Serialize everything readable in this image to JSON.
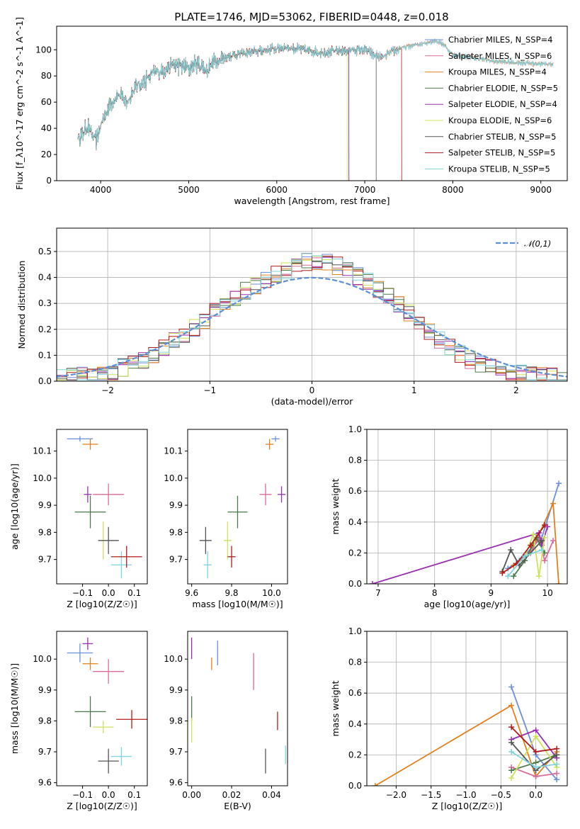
{
  "title": "PLATE=1746, MJD=53062, FIBERID=0448, z=0.018",
  "colors": {
    "Chabrier MILES": "#6a8fdc",
    "Salpeter MILES": "#d96b9d",
    "Kroupa MILES": "#e0801e",
    "Chabrier ELODIE": "#4a7a4a",
    "Salpeter ELODIE": "#9a2fb0",
    "Kroupa ELODIE": "#cfe05a",
    "Chabrier STELIB": "#555555",
    "Salpeter STELIB": "#b01c1c",
    "Kroupa STELIB": "#7fd4dd",
    "normal": "#5b8fd8"
  },
  "chart_data": [
    {
      "type": "line",
      "id": "spectrum",
      "xlabel": "wavelength [Angstrom, rest frame]",
      "ylabel": "Flux [f_λ10^-17 erg cm^-2 s^-1 A^-1]",
      "xlim": [
        3500,
        9300
      ],
      "ylim": [
        0,
        118
      ],
      "xticks": [
        4000,
        5000,
        6000,
        7000,
        8000,
        9000
      ],
      "yticks": [
        0,
        20,
        40,
        60,
        80,
        100
      ],
      "continuum": [
        [
          3740,
          32
        ],
        [
          3800,
          36
        ],
        [
          3850,
          42
        ],
        [
          3900,
          35
        ],
        [
          3950,
          30
        ],
        [
          4000,
          42
        ],
        [
          4100,
          58
        ],
        [
          4200,
          66
        ],
        [
          4300,
          60
        ],
        [
          4400,
          72
        ],
        [
          4500,
          76
        ],
        [
          4600,
          82
        ],
        [
          4700,
          84
        ],
        [
          4800,
          88
        ],
        [
          4900,
          88
        ],
        [
          5000,
          86
        ],
        [
          5100,
          90
        ],
        [
          5200,
          84
        ],
        [
          5300,
          92
        ],
        [
          5500,
          96
        ],
        [
          5700,
          98
        ],
        [
          5900,
          100
        ],
        [
          6100,
          102
        ],
        [
          6300,
          100
        ],
        [
          6500,
          98
        ],
        [
          6700,
          99
        ],
        [
          6900,
          100
        ],
        [
          7000,
          100
        ],
        [
          7100,
          96
        ],
        [
          7200,
          94
        ],
        [
          7300,
          98
        ],
        [
          7400,
          101
        ],
        [
          7600,
          104
        ],
        [
          7800,
          107
        ],
        [
          7900,
          104
        ],
        [
          8000,
          96
        ],
        [
          8200,
          94
        ],
        [
          8500,
          91
        ],
        [
          8800,
          90
        ],
        [
          9100,
          89
        ]
      ],
      "series": [
        {
          "name": "Chabrier MILES, N_SSP=4",
          "xmax": 9140
        },
        {
          "name": "Salpeter MILES, N_SSP=6",
          "xmax": 9140
        },
        {
          "name": "Kroupa MILES, N_SSP=4",
          "xmax": 9140
        },
        {
          "name": "Chabrier ELODIE, N_SSP=5",
          "xmax": 6820
        },
        {
          "name": "Salpeter ELODIE, N_SSP=4",
          "xmax": 6820
        },
        {
          "name": "Kroupa ELODIE, N_SSP=6",
          "xmax": 6800
        },
        {
          "name": "Chabrier STELIB, N_SSP=5",
          "xmax": 7130
        },
        {
          "name": "Salpeter STELIB, N_SSP=5",
          "xmax": 7420
        },
        {
          "name": "Kroupa STELIB, N_SSP=5",
          "xmax": 9140
        }
      ]
    },
    {
      "type": "line",
      "id": "residuals",
      "xlabel": "(data-model)/error",
      "ylabel": "Normed distribution",
      "xlim": [
        -2.5,
        2.5
      ],
      "ylim": [
        0,
        0.59
      ],
      "xticks": [
        -2,
        -1,
        0,
        1,
        2
      ],
      "yticks": [
        0.0,
        0.1,
        0.2,
        0.3,
        0.4,
        0.5
      ],
      "grid": true,
      "legend": "top-right",
      "reference": {
        "name": "𝒩(0,1)",
        "mean": 0,
        "sigma": 1
      },
      "bin_width": 0.1,
      "histogram_envelope": [
        [
          -2.5,
          0.01
        ],
        [
          -2.0,
          0.03
        ],
        [
          -1.6,
          0.09
        ],
        [
          -1.2,
          0.19
        ],
        [
          -0.9,
          0.28
        ],
        [
          -0.6,
          0.36
        ],
        [
          -0.3,
          0.42
        ],
        [
          0.0,
          0.47
        ],
        [
          0.3,
          0.44
        ],
        [
          0.6,
          0.37
        ],
        [
          0.9,
          0.28
        ],
        [
          1.2,
          0.17
        ],
        [
          1.6,
          0.07
        ],
        [
          2.0,
          0.03
        ],
        [
          2.5,
          0.01
        ]
      ]
    },
    {
      "type": "scatter",
      "id": "age-vs-Z",
      "xlabel": "Z [log10(Z/Z☉)]",
      "ylabel": "age  [log10(age/yr)]",
      "xlim": [
        -0.2,
        0.15
      ],
      "ylim": [
        9.61,
        10.18
      ],
      "xticks": [
        -0.1,
        0.0,
        0.1
      ],
      "yticks": [
        9.7,
        9.8,
        9.9,
        10.0,
        10.1
      ],
      "points": [
        {
          "name": "Chabrier MILES",
          "x": -0.11,
          "y": 10.145,
          "xerr": 0.05,
          "yerr": 0.01
        },
        {
          "name": "Kroupa MILES",
          "x": -0.07,
          "y": 10.125,
          "xerr": 0.03,
          "yerr": 0.02
        },
        {
          "name": "Salpeter ELODIE",
          "x": -0.08,
          "y": 9.94,
          "xerr": 0.015,
          "yerr": 0.03
        },
        {
          "name": "Salpeter MILES",
          "x": -0.0,
          "y": 9.94,
          "xerr": 0.06,
          "yerr": 0.04
        },
        {
          "name": "Chabrier ELODIE",
          "x": -0.07,
          "y": 9.875,
          "xerr": 0.06,
          "yerr": 0.06
        },
        {
          "name": "Kroupa ELODIE",
          "x": -0.02,
          "y": 9.77,
          "xerr": 0.02,
          "yerr": 0.07
        },
        {
          "name": "Chabrier STELIB",
          "x": 0.0,
          "y": 9.77,
          "xerr": 0.04,
          "yerr": 0.05
        },
        {
          "name": "Kroupa STELIB",
          "x": 0.05,
          "y": 9.68,
          "xerr": 0.04,
          "yerr": 0.05
        },
        {
          "name": "Salpeter STELIB",
          "x": 0.07,
          "y": 9.71,
          "xerr": 0.06,
          "yerr": 0.04
        }
      ]
    },
    {
      "type": "scatter",
      "id": "age-vs-mass",
      "xlabel": "mass [log10(M/M☉)]",
      "ylabel": "",
      "xlim": [
        9.58,
        10.08
      ],
      "ylim": [
        9.61,
        10.18
      ],
      "xticks": [
        9.6,
        9.8,
        10.0
      ],
      "yticks": [
        9.7,
        9.8,
        9.9,
        10.0,
        10.1
      ],
      "points": [
        {
          "name": "Chabrier MILES",
          "x": 10.02,
          "y": 10.145,
          "xerr": 0.02,
          "yerr": 0.01
        },
        {
          "name": "Kroupa MILES",
          "x": 9.99,
          "y": 10.125,
          "xerr": 0.02,
          "yerr": 0.02
        },
        {
          "name": "Salpeter ELODIE",
          "x": 10.05,
          "y": 9.94,
          "xerr": 0.02,
          "yerr": 0.03
        },
        {
          "name": "Salpeter MILES",
          "x": 9.97,
          "y": 9.94,
          "xerr": 0.03,
          "yerr": 0.04
        },
        {
          "name": "Chabrier ELODIE",
          "x": 9.83,
          "y": 9.875,
          "xerr": 0.05,
          "yerr": 0.06
        },
        {
          "name": "Kroupa ELODIE",
          "x": 9.78,
          "y": 9.77,
          "xerr": 0.02,
          "yerr": 0.07
        },
        {
          "name": "Chabrier STELIB",
          "x": 9.67,
          "y": 9.77,
          "xerr": 0.03,
          "yerr": 0.05
        },
        {
          "name": "Kroupa STELIB",
          "x": 9.68,
          "y": 9.68,
          "xerr": 0.02,
          "yerr": 0.05
        },
        {
          "name": "Salpeter STELIB",
          "x": 9.8,
          "y": 9.71,
          "xerr": 0.02,
          "yerr": 0.04
        }
      ]
    },
    {
      "type": "line",
      "id": "massweight-vs-age",
      "xlabel": "age  [log10(age/yr)]",
      "ylabel": "mass weight",
      "xlim": [
        6.8,
        10.35
      ],
      "ylim": [
        0,
        1
      ],
      "xticks": [
        7,
        8,
        9,
        10
      ],
      "yticks": [
        0.0,
        0.2,
        0.4,
        0.6,
        0.8,
        1.0
      ],
      "grid": true,
      "series": [
        {
          "name": "Chabrier MILES",
          "x": [
            9.3,
            9.5,
            9.9,
            10.2
          ],
          "y": [
            0.1,
            0.15,
            0.3,
            0.65
          ]
        },
        {
          "name": "Kroupa MILES",
          "x": [
            9.4,
            9.7,
            10.1,
            10.2
          ],
          "y": [
            0.12,
            0.2,
            0.52,
            0.0
          ]
        },
        {
          "name": "Salpeter MILES",
          "x": [
            9.7,
            9.85,
            9.95,
            10.1
          ],
          "y": [
            0.2,
            0.3,
            0.15,
            0.28
          ]
        },
        {
          "name": "Salpeter ELODIE",
          "x": [
            6.9,
            9.85,
            9.9,
            10.0
          ],
          "y": [
            0.0,
            0.33,
            0.25,
            0.37
          ]
        },
        {
          "name": "Chabrier ELODIE",
          "x": [
            9.4,
            9.6,
            9.8,
            9.95
          ],
          "y": [
            0.05,
            0.15,
            0.3,
            0.2
          ]
        },
        {
          "name": "Kroupa ELODIE",
          "x": [
            9.6,
            9.75,
            9.85,
            9.95
          ],
          "y": [
            0.18,
            0.32,
            0.05,
            0.3
          ]
        },
        {
          "name": "Chabrier STELIB",
          "x": [
            9.2,
            9.35,
            9.5,
            9.9
          ],
          "y": [
            0.08,
            0.22,
            0.12,
            0.28
          ]
        },
        {
          "name": "Salpeter STELIB",
          "x": [
            9.2,
            9.45,
            9.7,
            9.95
          ],
          "y": [
            0.07,
            0.13,
            0.25,
            0.38
          ]
        },
        {
          "name": "Kroupa STELIB",
          "x": [
            9.3,
            9.6,
            9.9
          ],
          "y": [
            0.05,
            0.18,
            0.22
          ]
        }
      ]
    },
    {
      "type": "scatter",
      "id": "mass-vs-Z",
      "xlabel": "Z [log10(Z/Z☉)]",
      "ylabel": "mass [log10(M/M☉)]",
      "xlim": [
        -0.2,
        0.15
      ],
      "ylim": [
        9.59,
        10.09
      ],
      "xticks": [
        -0.1,
        0.0,
        0.1
      ],
      "yticks": [
        9.6,
        9.7,
        9.8,
        9.9,
        10.0
      ],
      "points": [
        {
          "name": "Chabrier MILES",
          "x": -0.11,
          "y": 10.02,
          "xerr": 0.05,
          "yerr": 0.03
        },
        {
          "name": "Salpeter ELODIE",
          "x": -0.08,
          "y": 10.05,
          "xerr": 0.02,
          "yerr": 0.02
        },
        {
          "name": "Kroupa MILES",
          "x": -0.07,
          "y": 9.985,
          "xerr": 0.03,
          "yerr": 0.02
        },
        {
          "name": "Salpeter MILES",
          "x": 0.0,
          "y": 9.96,
          "xerr": 0.06,
          "yerr": 0.04
        },
        {
          "name": "Chabrier ELODIE",
          "x": -0.07,
          "y": 9.83,
          "xerr": 0.06,
          "yerr": 0.05
        },
        {
          "name": "Salpeter STELIB",
          "x": 0.09,
          "y": 9.805,
          "xerr": 0.06,
          "yerr": 0.03
        },
        {
          "name": "Kroupa ELODIE",
          "x": -0.02,
          "y": 9.78,
          "xerr": 0.04,
          "yerr": 0.02
        },
        {
          "name": "Kroupa STELIB",
          "x": 0.05,
          "y": 9.685,
          "xerr": 0.04,
          "yerr": 0.03
        },
        {
          "name": "Chabrier STELIB",
          "x": 0.0,
          "y": 9.67,
          "xerr": 0.04,
          "yerr": 0.04
        }
      ]
    },
    {
      "type": "scatter",
      "id": "mass-vs-EBV",
      "xlabel": "E(B-V)",
      "ylabel": "",
      "xlim": [
        -0.002,
        0.048
      ],
      "ylim": [
        9.59,
        10.09
      ],
      "xticks": [
        0.0,
        0.02,
        0.04
      ],
      "yticks": [
        9.6,
        9.7,
        9.8,
        9.9,
        10.0
      ],
      "points": [
        {
          "name": "Salpeter ELODIE",
          "x": 0.0,
          "y": 10.035,
          "yerr": 0.035
        },
        {
          "name": "Chabrier ELODIE",
          "x": 0.0,
          "y": 9.84,
          "yerr": 0.04
        },
        {
          "name": "Kroupa ELODIE",
          "x": 0.0,
          "y": 9.77,
          "yerr": 0.04
        },
        {
          "name": "Chabrier MILES",
          "x": 0.013,
          "y": 10.02,
          "yerr": 0.04
        },
        {
          "name": "Kroupa MILES",
          "x": 0.01,
          "y": 9.985,
          "yerr": 0.02
        },
        {
          "name": "Salpeter MILES",
          "x": 0.031,
          "y": 9.96,
          "yerr": 0.06
        },
        {
          "name": "Salpeter STELIB",
          "x": 0.043,
          "y": 9.8,
          "yerr": 0.03
        },
        {
          "name": "Chabrier STELIB",
          "x": 0.037,
          "y": 9.67,
          "yerr": 0.04
        },
        {
          "name": "Kroupa STELIB",
          "x": 0.047,
          "y": 9.69,
          "yerr": 0.03
        }
      ]
    },
    {
      "type": "line",
      "id": "massweight-vs-Z",
      "xlabel": "Z [log10(Z/Z☉)]",
      "ylabel": "mass weight",
      "xlim": [
        -2.42,
        0.45
      ],
      "ylim": [
        0,
        1
      ],
      "xticks": [
        -2.0,
        -1.5,
        -1.0,
        -0.5,
        0.0
      ],
      "yticks": [
        0.0,
        0.2,
        0.4,
        0.6,
        0.8,
        1.0
      ],
      "grid": true,
      "series": [
        {
          "name": "Kroupa MILES",
          "x": [
            -2.3,
            -0.35,
            0.0,
            0.3
          ],
          "y": [
            0.0,
            0.52,
            0.06,
            0.22
          ]
        },
        {
          "name": "Chabrier MILES",
          "x": [
            -0.35,
            0.0,
            0.3
          ],
          "y": [
            0.64,
            0.2,
            0.04
          ]
        },
        {
          "name": "Salpeter MILES",
          "x": [
            -0.35,
            0.0,
            0.3
          ],
          "y": [
            0.12,
            0.06,
            0.08
          ]
        },
        {
          "name": "Salpeter ELODIE",
          "x": [
            -0.35,
            0.0,
            0.3
          ],
          "y": [
            0.3,
            0.36,
            0.18
          ]
        },
        {
          "name": "Chabrier ELODIE",
          "x": [
            -0.35,
            0.0,
            0.3
          ],
          "y": [
            0.1,
            0.15,
            0.2
          ]
        },
        {
          "name": "Kroupa ELODIE",
          "x": [
            -0.35,
            0.0,
            0.3
          ],
          "y": [
            0.05,
            0.32,
            0.12
          ]
        },
        {
          "name": "Chabrier STELIB",
          "x": [
            -0.35,
            0.0,
            0.3
          ],
          "y": [
            0.28,
            0.1,
            0.2
          ]
        },
        {
          "name": "Salpeter STELIB",
          "x": [
            -0.35,
            0.0,
            0.3
          ],
          "y": [
            0.38,
            0.22,
            0.24
          ]
        },
        {
          "name": "Kroupa STELIB",
          "x": [
            -0.35,
            0.0,
            0.3
          ],
          "y": [
            0.22,
            0.12,
            0.14
          ]
        }
      ]
    }
  ]
}
